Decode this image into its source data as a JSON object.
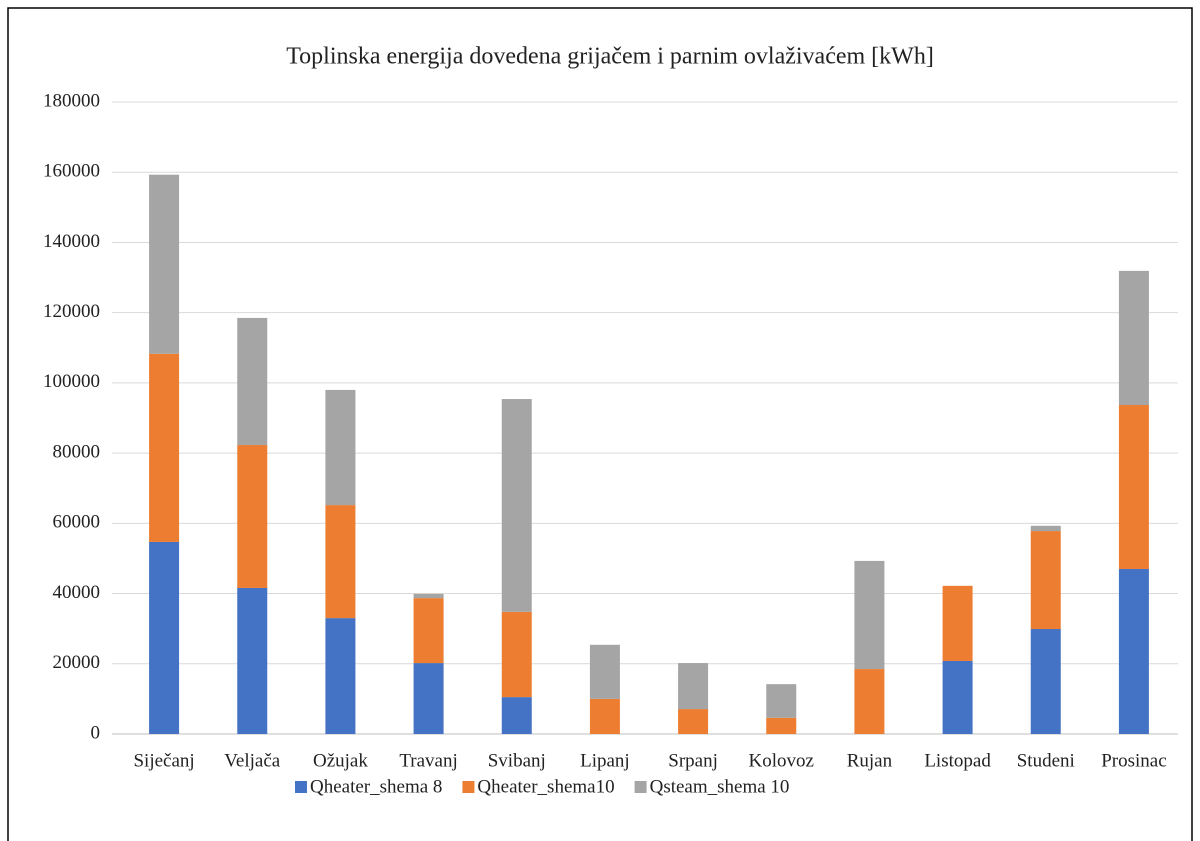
{
  "chart_data": {
    "type": "stacked_bar",
    "title": "Toplinska energija dovedena grijačem i parnim ovlaživaćem [kWh]",
    "categories": [
      "Siječanj",
      "Veljača",
      "Ožujak",
      "Travanj",
      "Svibanj",
      "Lipanj",
      "Srpanj",
      "Kolovoz",
      "Rujan",
      "Listopad",
      "Studeni",
      "Prosinac"
    ],
    "series": [
      {
        "name": "Qheater_shema 8",
        "color": "#4472c4",
        "values": [
          54700,
          41600,
          33000,
          20200,
          10500,
          0,
          0,
          0,
          0,
          20800,
          29900,
          47000
        ]
      },
      {
        "name": "Qheater_shema10",
        "color": "#ed7d31",
        "values": [
          53600,
          40700,
          32200,
          18500,
          24300,
          10000,
          7100,
          4600,
          18500,
          21400,
          27900,
          46700
        ]
      },
      {
        "name": "Qsteam_shema 10",
        "color": "#a5a5a5",
        "values": [
          51000,
          36200,
          32800,
          1200,
          60600,
          15400,
          13100,
          9600,
          30800,
          0,
          1500,
          38200
        ]
      }
    ],
    "ylim": [
      0,
      180000
    ],
    "yticks": [
      0,
      20000,
      40000,
      60000,
      80000,
      100000,
      120000,
      140000,
      160000,
      180000
    ],
    "grid": true,
    "legend": "bottom"
  }
}
